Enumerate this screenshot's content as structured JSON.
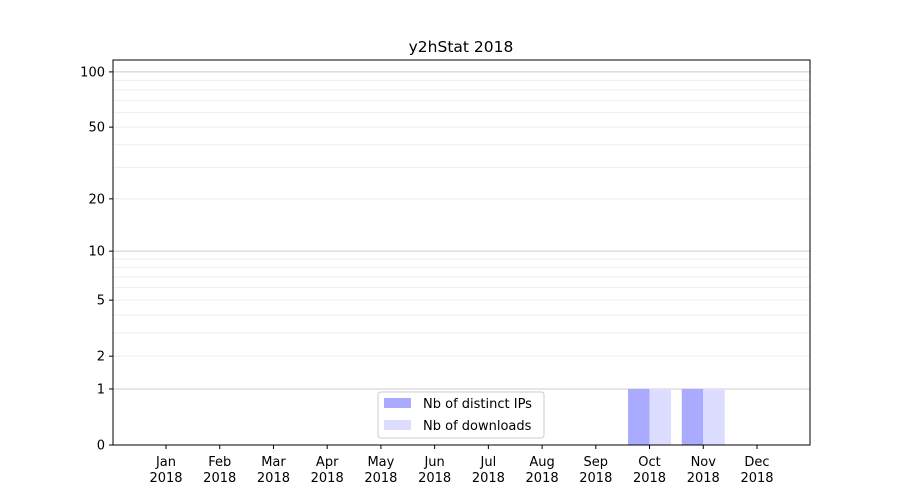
{
  "chart_data": {
    "type": "bar",
    "title": "y2hStat 2018",
    "xlabel": "",
    "ylabel": "",
    "yscale": "symlog (log of 1+value)",
    "ylim": [
      0,
      116
    ],
    "yticks": [
      0,
      1,
      2,
      5,
      10,
      20,
      50,
      100
    ],
    "grid": true,
    "legend_position": "bottom-center",
    "categories": [
      "Jan\n2018",
      "Feb\n2018",
      "Mar\n2018",
      "Apr\n2018",
      "May\n2018",
      "Jun\n2018",
      "Jul\n2018",
      "Aug\n2018",
      "Sep\n2018",
      "Oct\n2018",
      "Nov\n2018",
      "Dec\n2018"
    ],
    "series": [
      {
        "name": "Nb of distinct IPs",
        "color": "#aaaaff",
        "values": [
          0,
          0,
          0,
          0,
          0,
          0,
          0,
          0,
          0,
          1,
          1,
          0
        ]
      },
      {
        "name": "Nb of downloads",
        "color": "#ddddff",
        "values": [
          0,
          0,
          0,
          0,
          0,
          0,
          0,
          0,
          0,
          1,
          1,
          0
        ]
      }
    ]
  }
}
